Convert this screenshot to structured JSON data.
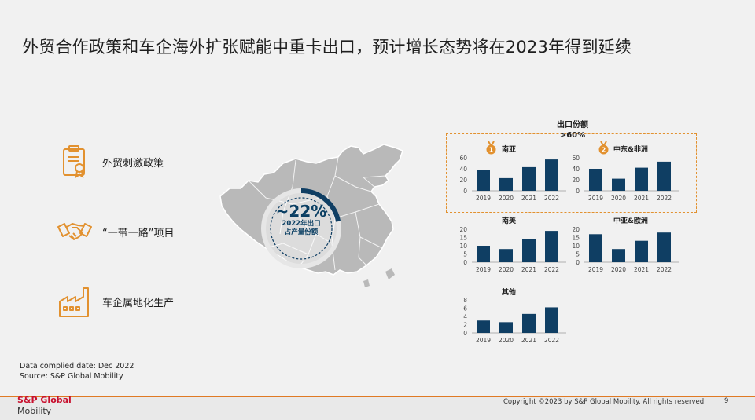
{
  "title": "外贸合作政策和车企海外扩张赋能中重卡出口，预计增长态势将在2023年得到延续",
  "drivers": [
    {
      "label": "外贸刺激政策",
      "icon": "certificate-icon"
    },
    {
      "label": "“一带一路”项目",
      "icon": "handshake-icon"
    },
    {
      "label": "车企属地化生产",
      "icon": "factory-icon"
    }
  ],
  "share": {
    "value": "~22%",
    "line1": "2022年出口",
    "line2": "占产量份额",
    "fraction": 0.22
  },
  "highlight": {
    "line1": "出口份额",
    "line2": ">60%"
  },
  "medals": [
    "1",
    "2"
  ],
  "chart_data": [
    {
      "type": "bar",
      "title": "南亚",
      "categories": [
        "2019",
        "2020",
        "2021",
        "2022"
      ],
      "values": [
        38,
        23,
        43,
        57
      ],
      "ylim": [
        0,
        60
      ],
      "ticks": [
        0,
        20,
        40,
        60
      ]
    },
    {
      "type": "bar",
      "title": "中东&非洲",
      "categories": [
        "2019",
        "2020",
        "2021",
        "2022"
      ],
      "values": [
        40,
        22,
        42,
        53
      ],
      "ylim": [
        0,
        60
      ],
      "ticks": [
        0,
        20,
        40,
        60
      ]
    },
    {
      "type": "bar",
      "title": "南美",
      "categories": [
        "2019",
        "2020",
        "2021",
        "2022"
      ],
      "values": [
        10,
        8,
        14,
        19
      ],
      "ylim": [
        0,
        20
      ],
      "ticks": [
        0,
        5,
        10,
        15,
        20
      ]
    },
    {
      "type": "bar",
      "title": "中亚&欧洲",
      "categories": [
        "2019",
        "2020",
        "2021",
        "2022"
      ],
      "values": [
        17,
        8,
        13,
        18
      ],
      "ylim": [
        0,
        20
      ],
      "ticks": [
        0,
        5,
        10,
        15,
        20
      ]
    },
    {
      "type": "bar",
      "title": "其他",
      "categories": [
        "2019",
        "2020",
        "2021",
        "2022"
      ],
      "values": [
        3,
        2.6,
        4.6,
        6.2
      ],
      "ylim": [
        0,
        8
      ],
      "ticks": [
        0,
        2,
        4,
        6,
        8
      ]
    }
  ],
  "colors": {
    "bar": "#0f3e63",
    "accent": "#e2912f",
    "map": "#b9b9b9",
    "ring_bg": "#e6e6e6"
  },
  "source": {
    "line1": "Data complied date: Dec 2022",
    "line2": "Source: S&P Global Mobility"
  },
  "footer": {
    "logo_top": "S&P Global",
    "logo_bottom": "Mobility",
    "copyright": "Copyright ©2023 by S&P Global Mobility. All rights reserved.",
    "page": "9"
  }
}
